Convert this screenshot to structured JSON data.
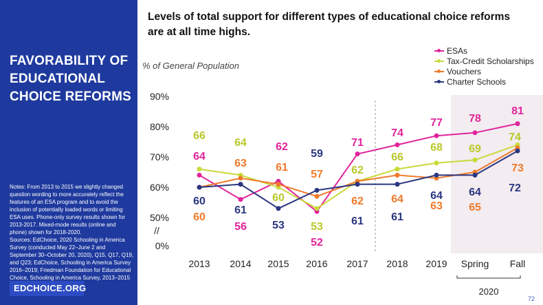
{
  "sidebar": {
    "title_lines": [
      "FAVORABILITY OF",
      "EDUCATIONAL",
      "CHOICE REFORMS"
    ],
    "notes_lines": [
      "Notes: From 2013 to 2015 we slightly changed",
      "question wording to more accurately reflect the",
      "features of an ESA program and to avoid the",
      "inclusion of potentially loaded words or limiting",
      "ESA uses. Phone-only survey results shown for",
      "2013-2017. Mixed-mode results (online and",
      "phone) shown for 2018-2020.",
      "Sources: EdChoice, 2020 Schooling in America",
      "Survey (conducted May 22–June 2 and",
      "September 30–October 20, 2020), Q15, Q17, Q19,",
      "and Q23; EdChoice, Schooling in America Survey",
      "2016–2019; Friedman Foundation for Educational",
      "Choice, Schooling in America Survey, 2013–2015"
    ],
    "logo": "EDCHOICE.ORG"
  },
  "headline_lines": [
    "Levels of total support for different types of educational choice reforms",
    "are at all time highs."
  ],
  "page_number": "72",
  "colors": {
    "sidebar": "#1f3a9e",
    "esas": "#e0249b",
    "tcs": "#c9d93a",
    "vouchers": "#ef7a2b",
    "charter": "#2a3680",
    "highlight": "#f3ecf0"
  },
  "chart_data": {
    "type": "line",
    "subtitle": "% of General Population",
    "categories": [
      "2013",
      "2014",
      "2015",
      "2016",
      "2017",
      "2018",
      "2019",
      "Spring",
      "Fall"
    ],
    "category_group": {
      "label": "2020",
      "categories": [
        "Spring",
        "Fall"
      ]
    },
    "y_ticks": [
      "90%",
      "80%",
      "70%",
      "60%",
      "50%",
      "0%"
    ],
    "y_tick_values": [
      90,
      80,
      70,
      60,
      50,
      40
    ],
    "axis_break": "//",
    "ylim": [
      40,
      90
    ],
    "grid": false,
    "legend_position": "top-right",
    "series": [
      {
        "name": "ESAs",
        "color_key": "esas",
        "values": [
          64,
          56,
          62,
          52,
          71,
          74,
          77,
          78,
          81
        ]
      },
      {
        "name": "Tax-Credit Scholarships",
        "color_key": "tcs",
        "values": [
          66,
          64,
          60,
          53,
          62,
          66,
          68,
          69,
          74
        ]
      },
      {
        "name": "Vouchers",
        "color_key": "vouchers",
        "values": [
          60,
          63,
          61,
          57,
          62,
          64,
          63,
          65,
          73
        ]
      },
      {
        "name": "Charter Schools",
        "color_key": "charter",
        "values": [
          60,
          61,
          53,
          59,
          61,
          61,
          64,
          64,
          72
        ]
      }
    ]
  }
}
